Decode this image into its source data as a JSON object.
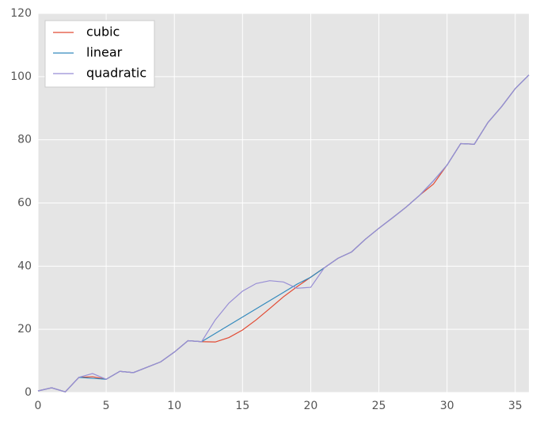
{
  "chart_data": {
    "type": "line",
    "x": [
      0,
      1,
      2,
      3,
      4,
      5,
      6,
      7,
      8,
      9,
      10,
      11,
      12,
      13,
      14,
      15,
      16,
      17,
      18,
      19,
      20,
      21,
      22,
      23,
      24,
      25,
      26,
      27,
      28,
      29,
      30,
      31,
      32,
      33,
      34,
      35,
      36
    ],
    "series": [
      {
        "name": "cubic",
        "color": "#e24a33",
        "values": [
          0.5,
          1.5,
          0.2,
          4.8,
          5.0,
          4.2,
          6.7,
          6.3,
          8.0,
          9.7,
          12.8,
          16.4,
          16.1,
          16.0,
          17.4,
          19.8,
          23.0,
          26.6,
          30.3,
          33.5,
          36.5,
          39.5,
          42.5,
          44.5,
          48.5,
          52,
          55.3,
          58.7,
          62.5,
          66,
          72,
          78.8,
          78.6,
          85.5,
          90.5,
          96.2,
          100.5
        ]
      },
      {
        "name": "linear",
        "color": "#348abd",
        "values": [
          0.5,
          1.5,
          0.2,
          4.8,
          4.5,
          4.2,
          6.7,
          6.3,
          8.0,
          9.7,
          12.8,
          16.4,
          16.1,
          18.7,
          21.3,
          23.9,
          26.5,
          29.1,
          31.7,
          34.3,
          36.5,
          39.5,
          42.5,
          44.5,
          48.5,
          52,
          55.3,
          58.7,
          62.5,
          67,
          72,
          78.8,
          78.6,
          85.5,
          90.5,
          96.2,
          100.5
        ]
      },
      {
        "name": "quadratic",
        "color": "#988ed5",
        "values": [
          0.5,
          1.5,
          0.2,
          4.8,
          6.0,
          4.2,
          6.7,
          6.3,
          8.0,
          9.7,
          12.8,
          16.4,
          16.1,
          23,
          28.3,
          32.1,
          34.5,
          35.4,
          35.0,
          33.0,
          33.3,
          39.5,
          42.5,
          44.5,
          48.5,
          52,
          55.3,
          58.7,
          62.5,
          67,
          72,
          78.8,
          78.6,
          85.5,
          90.5,
          96.2,
          100.5
        ]
      }
    ],
    "xlim": [
      0,
      36
    ],
    "xticks": [
      0,
      5,
      10,
      15,
      20,
      25,
      30,
      35
    ],
    "ylim": [
      0,
      120
    ],
    "yticks": [
      0,
      20,
      40,
      60,
      80,
      100,
      120
    ],
    "grid": true,
    "legend": "upper-left"
  }
}
